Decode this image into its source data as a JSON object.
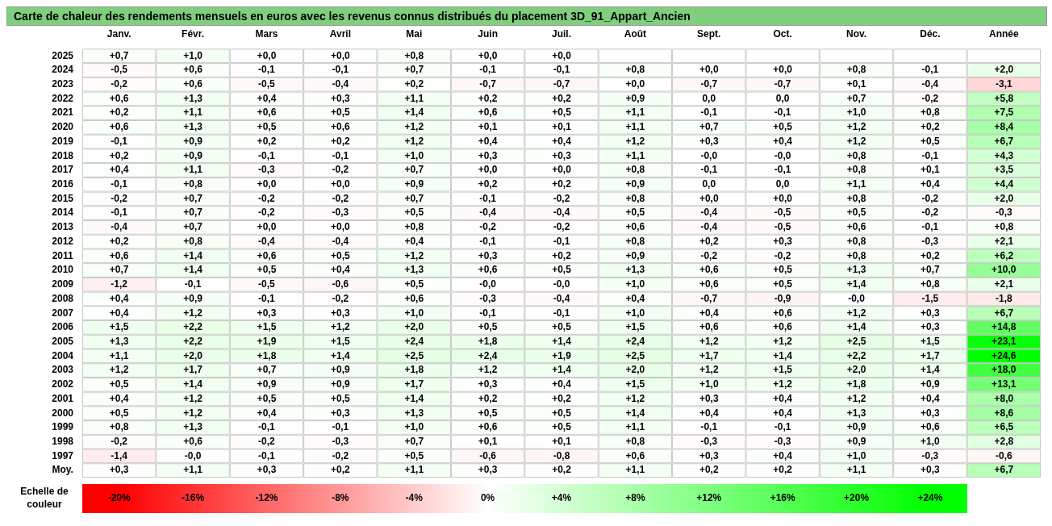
{
  "chart_data": {
    "type": "heatmap",
    "title": "Carte de chaleur des rendements mensuels en euros avec les revenus connus distribués du placement 3D_91_Appart_Ancien",
    "categories": [
      "Janv.",
      "Févr.",
      "Mars",
      "Avril",
      "Mai",
      "Juin",
      "Juil.",
      "Août",
      "Sept.",
      "Oct.",
      "Nov.",
      "Déc.",
      "Année"
    ],
    "y_categories": [
      "2025",
      "2024",
      "2023",
      "2022",
      "2021",
      "2020",
      "2019",
      "2018",
      "2017",
      "2016",
      "2015",
      "2014",
      "2013",
      "2012",
      "2011",
      "2010",
      "2009",
      "2008",
      "2007",
      "2006",
      "2005",
      "2004",
      "2003",
      "2002",
      "2001",
      "2000",
      "1999",
      "1998",
      "1997",
      "Moy."
    ],
    "cells": [
      [
        0.7,
        1.0,
        0.0,
        0.0,
        0.8,
        0.0,
        0.0,
        null,
        null,
        null,
        null,
        null,
        null
      ],
      [
        -0.5,
        0.6,
        -0.1,
        -0.1,
        0.7,
        -0.1,
        -0.1,
        0.8,
        0.0,
        0.0,
        0.8,
        -0.1,
        2.0
      ],
      [
        -0.2,
        0.6,
        -0.5,
        -0.4,
        0.2,
        -0.7,
        -0.7,
        0.0,
        -0.7,
        -0.7,
        0.1,
        -0.4,
        -3.1
      ],
      [
        0.6,
        1.3,
        0.4,
        0.3,
        1.1,
        0.2,
        0.2,
        0.9,
        0.0,
        0.0,
        0.7,
        -0.2,
        5.8
      ],
      [
        0.2,
        1.1,
        0.6,
        0.5,
        1.4,
        0.6,
        0.5,
        1.1,
        -0.1,
        -0.1,
        1.0,
        0.8,
        7.5
      ],
      [
        0.6,
        1.3,
        0.5,
        0.6,
        1.2,
        0.1,
        0.1,
        1.1,
        0.7,
        0.5,
        1.2,
        0.2,
        8.4
      ],
      [
        -0.1,
        0.9,
        0.2,
        0.2,
        1.2,
        0.4,
        0.4,
        1.2,
        0.3,
        0.4,
        1.2,
        0.5,
        6.7
      ],
      [
        0.2,
        0.9,
        -0.1,
        -0.1,
        1.0,
        0.3,
        0.3,
        1.1,
        0.0,
        0.0,
        0.8,
        -0.1,
        4.3
      ],
      [
        0.4,
        1.1,
        -0.3,
        -0.2,
        0.7,
        0.0,
        0.0,
        0.8,
        -0.1,
        -0.1,
        0.8,
        0.1,
        3.5
      ],
      [
        -0.1,
        0.8,
        0.0,
        0.0,
        0.9,
        0.2,
        0.2,
        0.9,
        0.0,
        0.0,
        1.1,
        0.4,
        4.4
      ],
      [
        -0.2,
        0.7,
        -0.2,
        -0.2,
        0.7,
        -0.1,
        -0.2,
        0.8,
        0.0,
        0.0,
        0.8,
        -0.2,
        2.0
      ],
      [
        -0.1,
        0.7,
        -0.2,
        -0.3,
        0.5,
        -0.4,
        -0.4,
        0.5,
        -0.4,
        -0.5,
        0.5,
        -0.2,
        -0.3
      ],
      [
        -0.4,
        0.7,
        0.0,
        0.0,
        0.8,
        -0.2,
        -0.2,
        0.6,
        -0.4,
        -0.5,
        0.6,
        -0.1,
        0.8
      ],
      [
        0.2,
        0.8,
        -0.4,
        -0.4,
        0.4,
        -0.1,
        -0.1,
        0.8,
        0.2,
        0.3,
        0.8,
        -0.3,
        2.1
      ],
      [
        0.6,
        1.4,
        0.6,
        0.5,
        1.2,
        0.3,
        0.2,
        0.9,
        -0.2,
        -0.2,
        0.8,
        0.2,
        6.2
      ],
      [
        0.7,
        1.4,
        0.5,
        0.4,
        1.3,
        0.6,
        0.5,
        1.3,
        0.6,
        0.5,
        1.3,
        0.7,
        10.0
      ],
      [
        -1.2,
        -0.1,
        -0.5,
        -0.6,
        0.5,
        0.0,
        0.0,
        1.0,
        0.6,
        0.5,
        1.4,
        0.8,
        2.1
      ],
      [
        0.4,
        0.9,
        -0.1,
        -0.2,
        0.6,
        -0.3,
        -0.4,
        0.4,
        -0.7,
        -0.9,
        0.0,
        -1.5,
        -1.8
      ],
      [
        0.4,
        1.2,
        0.3,
        0.3,
        1.0,
        -0.1,
        -0.1,
        1.0,
        0.4,
        0.6,
        1.2,
        0.3,
        6.7
      ],
      [
        1.5,
        2.2,
        1.5,
        1.2,
        2.0,
        0.5,
        0.5,
        1.5,
        0.6,
        0.6,
        1.4,
        0.3,
        14.8
      ],
      [
        1.3,
        2.2,
        1.9,
        1.5,
        2.4,
        1.8,
        1.4,
        2.4,
        1.2,
        1.2,
        2.5,
        1.5,
        23.1
      ],
      [
        1.1,
        2.0,
        1.8,
        1.4,
        2.5,
        2.4,
        1.9,
        2.5,
        1.7,
        1.4,
        2.2,
        1.7,
        24.6
      ],
      [
        1.2,
        1.7,
        0.7,
        0.9,
        1.8,
        1.2,
        1.4,
        2.0,
        1.2,
        1.5,
        2.0,
        1.4,
        18.0
      ],
      [
        0.5,
        1.4,
        0.9,
        0.9,
        1.7,
        0.3,
        0.4,
        1.5,
        1.0,
        1.2,
        1.8,
        0.9,
        13.1
      ],
      [
        0.4,
        1.2,
        0.5,
        0.5,
        1.4,
        0.2,
        0.2,
        1.2,
        0.3,
        0.4,
        1.2,
        0.4,
        8.0
      ],
      [
        0.5,
        1.2,
        0.4,
        0.3,
        1.3,
        0.5,
        0.5,
        1.4,
        0.4,
        0.4,
        1.3,
        0.3,
        8.6
      ],
      [
        0.8,
        1.3,
        -0.1,
        -0.1,
        1.0,
        0.6,
        0.5,
        1.1,
        -0.1,
        -0.1,
        0.9,
        0.6,
        6.5
      ],
      [
        -0.2,
        0.6,
        -0.2,
        -0.3,
        0.7,
        0.1,
        0.1,
        0.8,
        -0.3,
        -0.3,
        0.9,
        1.0,
        2.8
      ],
      [
        -1.4,
        0.0,
        -0.1,
        -0.2,
        0.5,
        -0.6,
        -0.8,
        0.6,
        0.3,
        0.4,
        1.0,
        -0.3,
        -0.6
      ],
      [
        0.3,
        1.1,
        0.3,
        0.2,
        1.1,
        0.3,
        0.2,
        1.1,
        0.2,
        0.2,
        1.1,
        0.3,
        6.7
      ]
    ],
    "cell_labels": [
      [
        "+0,7",
        "+1,0",
        "+0,0",
        "+0,0",
        "+0,8",
        "+0,0",
        "+0,0",
        null,
        null,
        null,
        null,
        null,
        null
      ],
      [
        "-0,5",
        "+0,6",
        "-0,1",
        "-0,1",
        "+0,7",
        "-0,1",
        "-0,1",
        "+0,8",
        "+0,0",
        "+0,0",
        "+0,8",
        "-0,1",
        "+2,0"
      ],
      [
        "-0,2",
        "+0,6",
        "-0,5",
        "-0,4",
        "+0,2",
        "-0,7",
        "-0,7",
        "+0,0",
        "-0,7",
        "-0,7",
        "+0,1",
        "-0,4",
        "-3,1"
      ],
      [
        "+0,6",
        "+1,3",
        "+0,4",
        "+0,3",
        "+1,1",
        "+0,2",
        "+0,2",
        "+0,9",
        "0,0",
        "0,0",
        "+0,7",
        "-0,2",
        "+5,8"
      ],
      [
        "+0,2",
        "+1,1",
        "+0,6",
        "+0,5",
        "+1,4",
        "+0,6",
        "+0,5",
        "+1,1",
        "-0,1",
        "-0,1",
        "+1,0",
        "+0,8",
        "+7,5"
      ],
      [
        "+0,6",
        "+1,3",
        "+0,5",
        "+0,6",
        "+1,2",
        "+0,1",
        "+0,1",
        "+1,1",
        "+0,7",
        "+0,5",
        "+1,2",
        "+0,2",
        "+8,4"
      ],
      [
        "-0,1",
        "+0,9",
        "+0,2",
        "+0,2",
        "+1,2",
        "+0,4",
        "+0,4",
        "+1,2",
        "+0,3",
        "+0,4",
        "+1,2",
        "+0,5",
        "+6,7"
      ],
      [
        "+0,2",
        "+0,9",
        "-0,1",
        "-0,1",
        "+1,0",
        "+0,3",
        "+0,3",
        "+1,1",
        "-0,0",
        "-0,0",
        "+0,8",
        "-0,1",
        "+4,3"
      ],
      [
        "+0,4",
        "+1,1",
        "-0,3",
        "-0,2",
        "+0,7",
        "+0,0",
        "+0,0",
        "+0,8",
        "-0,1",
        "-0,1",
        "+0,8",
        "+0,1",
        "+3,5"
      ],
      [
        "-0,1",
        "+0,8",
        "+0,0",
        "+0,0",
        "+0,9",
        "+0,2",
        "+0,2",
        "+0,9",
        "0,0",
        "0,0",
        "+1,1",
        "+0,4",
        "+4,4"
      ],
      [
        "-0,2",
        "+0,7",
        "-0,2",
        "-0,2",
        "+0,7",
        "-0,1",
        "-0,2",
        "+0,8",
        "+0,0",
        "+0,0",
        "+0,8",
        "-0,2",
        "+2,0"
      ],
      [
        "-0,1",
        "+0,7",
        "-0,2",
        "-0,3",
        "+0,5",
        "-0,4",
        "-0,4",
        "+0,5",
        "-0,4",
        "-0,5",
        "+0,5",
        "-0,2",
        "-0,3"
      ],
      [
        "-0,4",
        "+0,7",
        "+0,0",
        "+0,0",
        "+0,8",
        "-0,2",
        "-0,2",
        "+0,6",
        "-0,4",
        "-0,5",
        "+0,6",
        "-0,1",
        "+0,8"
      ],
      [
        "+0,2",
        "+0,8",
        "-0,4",
        "-0,4",
        "+0,4",
        "-0,1",
        "-0,1",
        "+0,8",
        "+0,2",
        "+0,3",
        "+0,8",
        "-0,3",
        "+2,1"
      ],
      [
        "+0,6",
        "+1,4",
        "+0,6",
        "+0,5",
        "+1,2",
        "+0,3",
        "+0,2",
        "+0,9",
        "-0,2",
        "-0,2",
        "+0,8",
        "+0,2",
        "+6,2"
      ],
      [
        "+0,7",
        "+1,4",
        "+0,5",
        "+0,4",
        "+1,3",
        "+0,6",
        "+0,5",
        "+1,3",
        "+0,6",
        "+0,5",
        "+1,3",
        "+0,7",
        "+10,0"
      ],
      [
        "-1,2",
        "-0,1",
        "-0,5",
        "-0,6",
        "+0,5",
        "-0,0",
        "-0,0",
        "+1,0",
        "+0,6",
        "+0,5",
        "+1,4",
        "+0,8",
        "+2,1"
      ],
      [
        "+0,4",
        "+0,9",
        "-0,1",
        "-0,2",
        "+0,6",
        "-0,3",
        "-0,4",
        "+0,4",
        "-0,7",
        "-0,9",
        "-0,0",
        "-1,5",
        "-1,8"
      ],
      [
        "+0,4",
        "+1,2",
        "+0,3",
        "+0,3",
        "+1,0",
        "-0,1",
        "-0,1",
        "+1,0",
        "+0,4",
        "+0,6",
        "+1,2",
        "+0,3",
        "+6,7"
      ],
      [
        "+1,5",
        "+2,2",
        "+1,5",
        "+1,2",
        "+2,0",
        "+0,5",
        "+0,5",
        "+1,5",
        "+0,6",
        "+0,6",
        "+1,4",
        "+0,3",
        "+14,8"
      ],
      [
        "+1,3",
        "+2,2",
        "+1,9",
        "+1,5",
        "+2,4",
        "+1,8",
        "+1,4",
        "+2,4",
        "+1,2",
        "+1,2",
        "+2,5",
        "+1,5",
        "+23,1"
      ],
      [
        "+1,1",
        "+2,0",
        "+1,8",
        "+1,4",
        "+2,5",
        "+2,4",
        "+1,9",
        "+2,5",
        "+1,7",
        "+1,4",
        "+2,2",
        "+1,7",
        "+24,6"
      ],
      [
        "+1,2",
        "+1,7",
        "+0,7",
        "+0,9",
        "+1,8",
        "+1,2",
        "+1,4",
        "+2,0",
        "+1,2",
        "+1,5",
        "+2,0",
        "+1,4",
        "+18,0"
      ],
      [
        "+0,5",
        "+1,4",
        "+0,9",
        "+0,9",
        "+1,7",
        "+0,3",
        "+0,4",
        "+1,5",
        "+1,0",
        "+1,2",
        "+1,8",
        "+0,9",
        "+13,1"
      ],
      [
        "+0,4",
        "+1,2",
        "+0,5",
        "+0,5",
        "+1,4",
        "+0,2",
        "+0,2",
        "+1,2",
        "+0,3",
        "+0,4",
        "+1,2",
        "+0,4",
        "+8,0"
      ],
      [
        "+0,5",
        "+1,2",
        "+0,4",
        "+0,3",
        "+1,3",
        "+0,5",
        "+0,5",
        "+1,4",
        "+0,4",
        "+0,4",
        "+1,3",
        "+0,3",
        "+8,6"
      ],
      [
        "+0,8",
        "+1,3",
        "-0,1",
        "-0,1",
        "+1,0",
        "+0,6",
        "+0,5",
        "+1,1",
        "-0,1",
        "-0,1",
        "+0,9",
        "+0,6",
        "+6,5"
      ],
      [
        "-0,2",
        "+0,6",
        "-0,2",
        "-0,3",
        "+0,7",
        "+0,1",
        "+0,1",
        "+0,8",
        "-0,3",
        "-0,3",
        "+0,9",
        "+1,0",
        "+2,8"
      ],
      [
        "-1,4",
        "-0,0",
        "-0,1",
        "-0,2",
        "+0,5",
        "-0,6",
        "-0,8",
        "+0,6",
        "+0,3",
        "+0,4",
        "+1,0",
        "-0,3",
        "-0,6"
      ],
      [
        "+0,3",
        "+1,1",
        "+0,3",
        "+0,2",
        "+1,1",
        "+0,3",
        "+0,2",
        "+1,1",
        "+0,2",
        "+0,2",
        "+1,1",
        "+0,3",
        "+6,7"
      ]
    ],
    "clabel": "Echelle de couleur",
    "clim": [
      -20,
      24
    ],
    "cticks": [
      {
        "value": -20,
        "label": "-20%"
      },
      {
        "value": -16,
        "label": "-16%"
      },
      {
        "value": -12,
        "label": "-12%"
      },
      {
        "value": -8,
        "label": "-8%"
      },
      {
        "value": -4,
        "label": "-4%"
      },
      {
        "value": 0,
        "label": "0%"
      },
      {
        "value": 4,
        "label": "+4%"
      },
      {
        "value": 8,
        "label": "+8%"
      },
      {
        "value": 12,
        "label": "+12%"
      },
      {
        "value": 16,
        "label": "+16%"
      },
      {
        "value": 20,
        "label": "+20%"
      },
      {
        "value": 24,
        "label": "+24%"
      }
    ]
  }
}
